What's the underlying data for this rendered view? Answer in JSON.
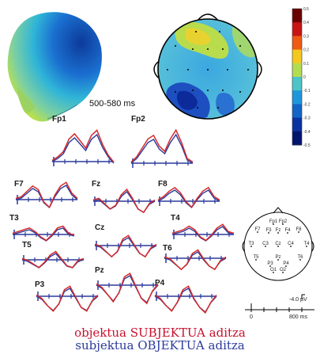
{
  "time_window": "500-580 ms",
  "colorbar": {
    "ticks": [
      "0.5",
      "0.4",
      "0.3",
      "0.2",
      "0.1",
      "0",
      "-0.1",
      "-0.2",
      "-0.3",
      "-0.4",
      "-0.5"
    ],
    "colors": [
      "#6a0000",
      "#c81414",
      "#f05a14",
      "#f5c81e",
      "#b4dc50",
      "#4cc4c8",
      "#1e96dc",
      "#1464c8",
      "#0a32a0",
      "#00146e"
    ]
  },
  "electrodes": [
    "Fp1",
    "Fp2",
    "F7",
    "Fz",
    "F8",
    "T3",
    "Cz",
    "T4",
    "T5",
    "T6",
    "P3",
    "Pz",
    "P4"
  ],
  "head_map": {
    "labels": [
      "Fp1",
      "Fp2",
      "F7",
      "F8",
      "F3",
      "Fz",
      "F4",
      "T3",
      "C3",
      "Cz",
      "C4",
      "T4",
      "T5",
      "P3",
      "Pz",
      "P4",
      "T6",
      "O1",
      "O2"
    ]
  },
  "scale_bar": {
    "amplitude": "-4.0 µV",
    "start": "0",
    "end": "800 ms"
  },
  "legend": {
    "red": "objektua SUBJEKTUA  aditza",
    "blue": "subjektua OBJEKTUA   aditza"
  },
  "colors": {
    "red_trace": "#d42a2a",
    "blue_trace": "#2b3a9c"
  }
}
